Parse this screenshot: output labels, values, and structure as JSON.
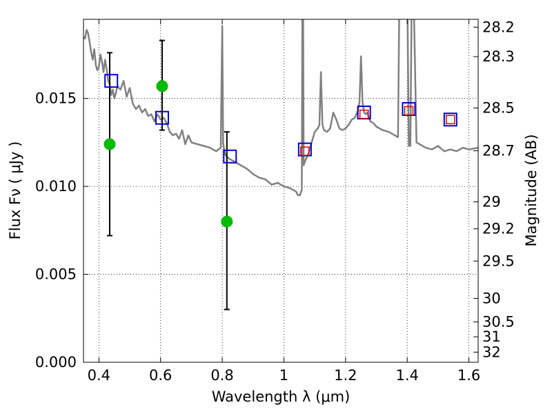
{
  "chart_data": {
    "type": "scatter",
    "xlabel": "Wavelength  λ (μm)",
    "ylabel": "Flux  Fν  ( μJy )",
    "ylabel_right": "Magnitude (AB)",
    "xlim": [
      0.35,
      1.63
    ],
    "ylim": [
      0.0,
      0.0195
    ],
    "grid": true,
    "x_ticks": [
      {
        "value": 0.4,
        "label": "0.4"
      },
      {
        "value": 0.6,
        "label": "0.6"
      },
      {
        "value": 0.8,
        "label": "0.8"
      },
      {
        "value": 1.0,
        "label": "1"
      },
      {
        "value": 1.2,
        "label": "1.2"
      },
      {
        "value": 1.4,
        "label": "1.4"
      },
      {
        "value": 1.6,
        "label": "1.6"
      }
    ],
    "y_ticks": [
      {
        "value": 0.0,
        "label": "0.000"
      },
      {
        "value": 0.005,
        "label": "0.005"
      },
      {
        "value": 0.01,
        "label": "0.010"
      },
      {
        "value": 0.015,
        "label": "0.015"
      }
    ],
    "mag_ticks": [
      {
        "label": "28.2",
        "mag": 28.2
      },
      {
        "label": "28.3",
        "mag": 28.3
      },
      {
        "label": "28.5",
        "mag": 28.5
      },
      {
        "label": "28.7",
        "mag": 28.7
      },
      {
        "label": "29",
        "mag": 29.0
      },
      {
        "label": "29.2",
        "mag": 29.2
      },
      {
        "label": "29.5",
        "mag": 29.5
      },
      {
        "label": "30",
        "mag": 30.0
      },
      {
        "label": "30.5",
        "mag": 30.5
      },
      {
        "label": "31",
        "mag": 31.0
      },
      {
        "label": "32",
        "mag": 32.0
      }
    ],
    "model_spectrum": {
      "color": "#808080",
      "x": [
        0.35,
        0.355,
        0.36,
        0.365,
        0.37,
        0.375,
        0.38,
        0.385,
        0.39,
        0.395,
        0.4,
        0.405,
        0.41,
        0.415,
        0.42,
        0.425,
        0.43,
        0.435,
        0.44,
        0.445,
        0.45,
        0.455,
        0.46,
        0.47,
        0.48,
        0.49,
        0.5,
        0.51,
        0.52,
        0.53,
        0.54,
        0.55,
        0.56,
        0.57,
        0.58,
        0.59,
        0.6,
        0.61,
        0.62,
        0.63,
        0.64,
        0.65,
        0.66,
        0.67,
        0.68,
        0.69,
        0.7,
        0.72,
        0.74,
        0.76,
        0.78,
        0.795,
        0.8,
        0.803,
        0.806,
        0.81,
        0.82,
        0.84,
        0.86,
        0.88,
        0.9,
        0.92,
        0.94,
        0.96,
        0.98,
        1.0,
        1.02,
        1.04,
        1.045,
        1.052,
        1.058,
        1.06,
        1.062,
        1.064,
        1.07,
        1.08,
        1.09,
        1.1,
        1.11,
        1.115,
        1.12,
        1.125,
        1.13,
        1.14,
        1.15,
        1.16,
        1.17,
        1.18,
        1.19,
        1.2,
        1.21,
        1.22,
        1.23,
        1.24,
        1.245,
        1.25,
        1.255,
        1.26,
        1.265,
        1.27,
        1.28,
        1.29,
        1.3,
        1.32,
        1.34,
        1.36,
        1.37,
        1.375,
        1.38,
        1.385,
        1.39,
        1.395,
        1.4,
        1.405,
        1.41,
        1.415,
        1.42,
        1.43,
        1.44,
        1.46,
        1.48,
        1.5,
        1.52,
        1.54,
        1.56,
        1.58,
        1.6,
        1.63
      ],
      "y": [
        0.0185,
        0.0184,
        0.0189,
        0.0187,
        0.0182,
        0.0176,
        0.0172,
        0.0178,
        0.0169,
        0.0166,
        0.0168,
        0.0175,
        0.0171,
        0.0165,
        0.0172,
        0.0167,
        0.016,
        0.0158,
        0.0152,
        0.0155,
        0.015,
        0.0153,
        0.0157,
        0.0155,
        0.016,
        0.0151,
        0.0156,
        0.0147,
        0.0144,
        0.0146,
        0.0142,
        0.0144,
        0.014,
        0.0141,
        0.0137,
        0.0141,
        0.0138,
        0.0139,
        0.0136,
        0.0131,
        0.0129,
        0.013,
        0.0127,
        0.0132,
        0.0124,
        0.0129,
        0.0125,
        0.0124,
        0.0123,
        0.0122,
        0.012,
        0.0122,
        0.0191,
        0.0125,
        0.0121,
        0.0118,
        0.0116,
        0.0114,
        0.0112,
        0.011,
        0.0107,
        0.0105,
        0.0104,
        0.0101,
        0.0102,
        0.01,
        0.0099,
        0.0097,
        0.0095,
        0.0095,
        0.0098,
        0.0215,
        0.0215,
        0.0112,
        0.0115,
        0.0119,
        0.0125,
        0.0131,
        0.0133,
        0.0135,
        0.0165,
        0.0135,
        0.0132,
        0.0131,
        0.0133,
        0.0142,
        0.0138,
        0.0133,
        0.0132,
        0.0133,
        0.0135,
        0.0138,
        0.0139,
        0.0143,
        0.0148,
        0.0174,
        0.0148,
        0.0142,
        0.0141,
        0.0142,
        0.0137,
        0.0136,
        0.0134,
        0.0132,
        0.0131,
        0.0129,
        0.0128,
        0.0215,
        0.0215,
        0.0215,
        0.0215,
        0.0215,
        0.0215,
        0.0123,
        0.0123,
        0.0215,
        0.0215,
        0.0125,
        0.0124,
        0.0122,
        0.0121,
        0.0123,
        0.012,
        0.0121,
        0.012,
        0.0122,
        0.0121,
        0.0122
      ]
    },
    "observed_points": {
      "marker": "circle",
      "color": "#00bb00",
      "x": [
        0.435,
        0.605,
        0.815
      ],
      "y": [
        0.0124,
        0.0157,
        0.008
      ],
      "err_low": [
        0.0072,
        0.0132,
        0.003
      ],
      "err_high": [
        0.0176,
        0.0183,
        0.0131
      ]
    },
    "model_photometry_blue": {
      "marker": "square",
      "color": "#0000cc",
      "x": [
        0.44,
        0.605,
        0.825,
        1.068,
        1.26,
        1.405,
        1.54
      ],
      "y": [
        0.016,
        0.0139,
        0.0117,
        0.0121,
        0.0142,
        0.0144,
        0.0138
      ]
    },
    "model_photometry_red": {
      "marker": "square",
      "color": "#dd0000",
      "x": [
        1.068,
        1.26,
        1.405,
        1.54
      ],
      "y": [
        0.012,
        0.0141,
        0.0143,
        0.0138
      ]
    }
  }
}
